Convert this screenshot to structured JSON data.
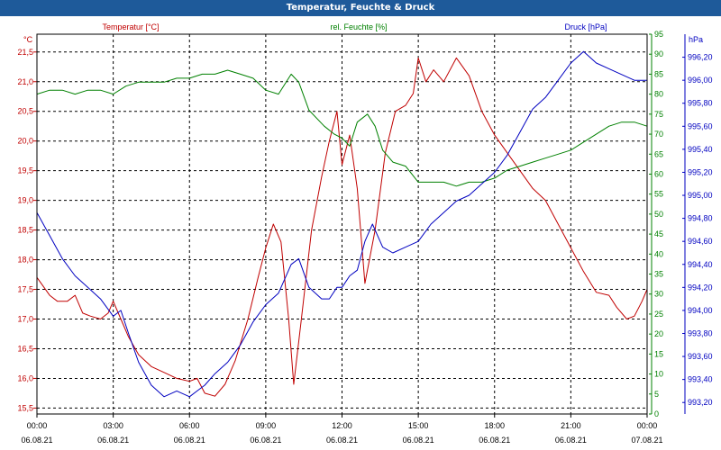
{
  "chart_data": {
    "type": "line",
    "title": "Temperatur, Feuchte & Druck",
    "x_time_labels": [
      "00:00",
      "03:00",
      "06:00",
      "09:00",
      "12:00",
      "15:00",
      "18:00",
      "21:00",
      "00:00"
    ],
    "x_date_labels": [
      "06.08.21",
      "06.08.21",
      "06.08.21",
      "06.08.21",
      "06.08.21",
      "06.08.21",
      "06.08.21",
      "06.08.21",
      "07.08.21"
    ],
    "x_range_hours": [
      0,
      24
    ],
    "axes": {
      "temperature": {
        "label": "Temperatur [°C]",
        "unit": "°C",
        "color": "#c00000",
        "ylim": [
          15.4,
          21.8
        ],
        "ticks": [
          "15,5",
          "16,0",
          "16,5",
          "17,0",
          "17,5",
          "18,0",
          "18,5",
          "19,0",
          "19,5",
          "20,0",
          "20,5",
          "21,0",
          "21,5"
        ],
        "tick_values": [
          15.5,
          16.0,
          16.5,
          17.0,
          17.5,
          18.0,
          18.5,
          19.0,
          19.5,
          20.0,
          20.5,
          21.0,
          21.5
        ]
      },
      "humidity": {
        "label": "rel. Feuchte [%]",
        "unit": "%",
        "color": "#008000",
        "ylim": [
          0,
          95
        ],
        "ticks": [
          "0",
          "5",
          "10",
          "15",
          "20",
          "25",
          "30",
          "35",
          "40",
          "45",
          "50",
          "55",
          "60",
          "65",
          "70",
          "75",
          "80",
          "85",
          "90",
          "95"
        ],
        "tick_values": [
          0,
          5,
          10,
          15,
          20,
          25,
          30,
          35,
          40,
          45,
          50,
          55,
          60,
          65,
          70,
          75,
          80,
          85,
          90,
          95
        ]
      },
      "pressure": {
        "label": "Druck [hPa]",
        "unit": "hPa",
        "color": "#0000c0",
        "ylim": [
          993.1,
          996.4
        ],
        "ticks": [
          "993,20",
          "993,40",
          "993,60",
          "993,80",
          "994,00",
          "994,20",
          "994,40",
          "994,60",
          "994,80",
          "995,00",
          "995,20",
          "995,40",
          "995,60",
          "995,80",
          "996,00",
          "996,20"
        ],
        "tick_values": [
          993.2,
          993.4,
          993.6,
          993.8,
          994.0,
          994.2,
          994.4,
          994.6,
          994.8,
          995.0,
          995.2,
          995.4,
          995.6,
          995.8,
          996.0,
          996.2
        ]
      }
    },
    "series": [
      {
        "name": "Temperatur [°C]",
        "axis": "temperature",
        "color": "#c00000",
        "points": [
          [
            0,
            17.7
          ],
          [
            0.5,
            17.4
          ],
          [
            0.8,
            17.3
          ],
          [
            1.2,
            17.3
          ],
          [
            1.5,
            17.4
          ],
          [
            1.8,
            17.1
          ],
          [
            2.1,
            17.05
          ],
          [
            2.5,
            17.0
          ],
          [
            2.8,
            17.1
          ],
          [
            3.0,
            17.3
          ],
          [
            3.3,
            17.0
          ],
          [
            3.6,
            16.7
          ],
          [
            4.0,
            16.4
          ],
          [
            4.5,
            16.2
          ],
          [
            5.0,
            16.1
          ],
          [
            5.5,
            16.0
          ],
          [
            6.0,
            15.95
          ],
          [
            6.3,
            16.0
          ],
          [
            6.6,
            15.75
          ],
          [
            7.0,
            15.7
          ],
          [
            7.4,
            15.9
          ],
          [
            7.8,
            16.3
          ],
          [
            8.3,
            17.0
          ],
          [
            8.7,
            17.7
          ],
          [
            9.0,
            18.2
          ],
          [
            9.3,
            18.6
          ],
          [
            9.6,
            18.3
          ],
          [
            9.9,
            17.0
          ],
          [
            10.1,
            15.9
          ],
          [
            10.4,
            17.0
          ],
          [
            10.8,
            18.5
          ],
          [
            11.2,
            19.4
          ],
          [
            11.5,
            20.0
          ],
          [
            11.8,
            20.5
          ],
          [
            12.0,
            19.6
          ],
          [
            12.3,
            20.1
          ],
          [
            12.6,
            19.2
          ],
          [
            12.9,
            17.6
          ],
          [
            13.3,
            18.5
          ],
          [
            13.7,
            19.8
          ],
          [
            14.1,
            20.5
          ],
          [
            14.5,
            20.6
          ],
          [
            14.8,
            20.8
          ],
          [
            15.0,
            21.4
          ],
          [
            15.3,
            21.0
          ],
          [
            15.6,
            21.2
          ],
          [
            16.0,
            21.0
          ],
          [
            16.5,
            21.4
          ],
          [
            17.0,
            21.1
          ],
          [
            17.5,
            20.5
          ],
          [
            18.0,
            20.1
          ],
          [
            18.5,
            19.8
          ],
          [
            19.0,
            19.5
          ],
          [
            19.5,
            19.2
          ],
          [
            20.0,
            19.0
          ],
          [
            20.5,
            18.6
          ],
          [
            21.0,
            18.2
          ],
          [
            21.5,
            17.8
          ],
          [
            22.0,
            17.45
          ],
          [
            22.5,
            17.4
          ],
          [
            22.8,
            17.2
          ],
          [
            23.2,
            17.0
          ],
          [
            23.5,
            17.05
          ],
          [
            23.8,
            17.3
          ],
          [
            24.0,
            17.5
          ]
        ]
      },
      {
        "name": "rel. Feuchte [%]",
        "axis": "humidity",
        "color": "#008000",
        "points": [
          [
            0,
            80
          ],
          [
            0.5,
            81
          ],
          [
            1.0,
            81
          ],
          [
            1.5,
            80
          ],
          [
            2.0,
            81
          ],
          [
            2.5,
            81
          ],
          [
            3.0,
            80
          ],
          [
            3.5,
            82
          ],
          [
            4.0,
            83
          ],
          [
            5.0,
            83
          ],
          [
            5.5,
            84
          ],
          [
            6.0,
            84
          ],
          [
            6.5,
            85
          ],
          [
            7.0,
            85
          ],
          [
            7.5,
            86
          ],
          [
            8.0,
            85
          ],
          [
            8.5,
            84
          ],
          [
            9.0,
            81
          ],
          [
            9.5,
            80
          ],
          [
            10.0,
            85
          ],
          [
            10.3,
            83
          ],
          [
            10.7,
            76
          ],
          [
            11.3,
            72
          ],
          [
            11.7,
            70
          ],
          [
            12.0,
            69
          ],
          [
            12.3,
            67
          ],
          [
            12.6,
            73
          ],
          [
            13.0,
            75
          ],
          [
            13.3,
            72
          ],
          [
            13.6,
            66
          ],
          [
            14.0,
            63
          ],
          [
            14.5,
            62
          ],
          [
            15.0,
            58
          ],
          [
            15.5,
            58
          ],
          [
            16.0,
            58
          ],
          [
            16.5,
            57
          ],
          [
            17.0,
            58
          ],
          [
            17.5,
            58
          ],
          [
            18.0,
            59
          ],
          [
            18.5,
            61
          ],
          [
            19.0,
            62
          ],
          [
            19.5,
            63
          ],
          [
            20.0,
            64
          ],
          [
            20.5,
            65
          ],
          [
            21.0,
            66
          ],
          [
            21.5,
            68
          ],
          [
            22.0,
            70
          ],
          [
            22.5,
            72
          ],
          [
            23.0,
            73
          ],
          [
            23.5,
            73
          ],
          [
            24.0,
            72
          ]
        ]
      },
      {
        "name": "Druck [hPa]",
        "axis": "pressure",
        "color": "#0000c0",
        "points": [
          [
            0,
            994.85
          ],
          [
            0.5,
            994.65
          ],
          [
            1.0,
            994.45
          ],
          [
            1.5,
            994.3
          ],
          [
            2.0,
            994.2
          ],
          [
            2.5,
            994.1
          ],
          [
            3.0,
            993.95
          ],
          [
            3.3,
            994.0
          ],
          [
            3.6,
            993.8
          ],
          [
            4.0,
            993.55
          ],
          [
            4.5,
            993.35
          ],
          [
            5.0,
            993.25
          ],
          [
            5.5,
            993.3
          ],
          [
            6.0,
            993.25
          ],
          [
            6.3,
            993.3
          ],
          [
            6.6,
            993.35
          ],
          [
            7.0,
            993.45
          ],
          [
            7.5,
            993.55
          ],
          [
            8.0,
            993.7
          ],
          [
            8.5,
            993.9
          ],
          [
            9.0,
            994.05
          ],
          [
            9.5,
            994.15
          ],
          [
            10.0,
            994.4
          ],
          [
            10.3,
            994.45
          ],
          [
            10.7,
            994.2
          ],
          [
            11.2,
            994.1
          ],
          [
            11.5,
            994.1
          ],
          [
            11.8,
            994.2
          ],
          [
            12.0,
            994.2
          ],
          [
            12.3,
            994.3
          ],
          [
            12.6,
            994.35
          ],
          [
            12.9,
            994.6
          ],
          [
            13.2,
            994.75
          ],
          [
            13.6,
            994.55
          ],
          [
            14.0,
            994.5
          ],
          [
            14.5,
            994.55
          ],
          [
            15.0,
            994.6
          ],
          [
            15.5,
            994.75
          ],
          [
            16.0,
            994.85
          ],
          [
            16.5,
            994.95
          ],
          [
            17.0,
            995.0
          ],
          [
            17.5,
            995.1
          ],
          [
            18.0,
            995.2
          ],
          [
            18.5,
            995.35
          ],
          [
            19.0,
            995.55
          ],
          [
            19.5,
            995.75
          ],
          [
            20.0,
            995.85
          ],
          [
            20.5,
            996.0
          ],
          [
            21.0,
            996.15
          ],
          [
            21.5,
            996.25
          ],
          [
            22.0,
            996.15
          ],
          [
            22.5,
            996.1
          ],
          [
            23.0,
            996.05
          ],
          [
            23.5,
            996.0
          ],
          [
            24.0,
            996.0
          ]
        ]
      }
    ]
  }
}
